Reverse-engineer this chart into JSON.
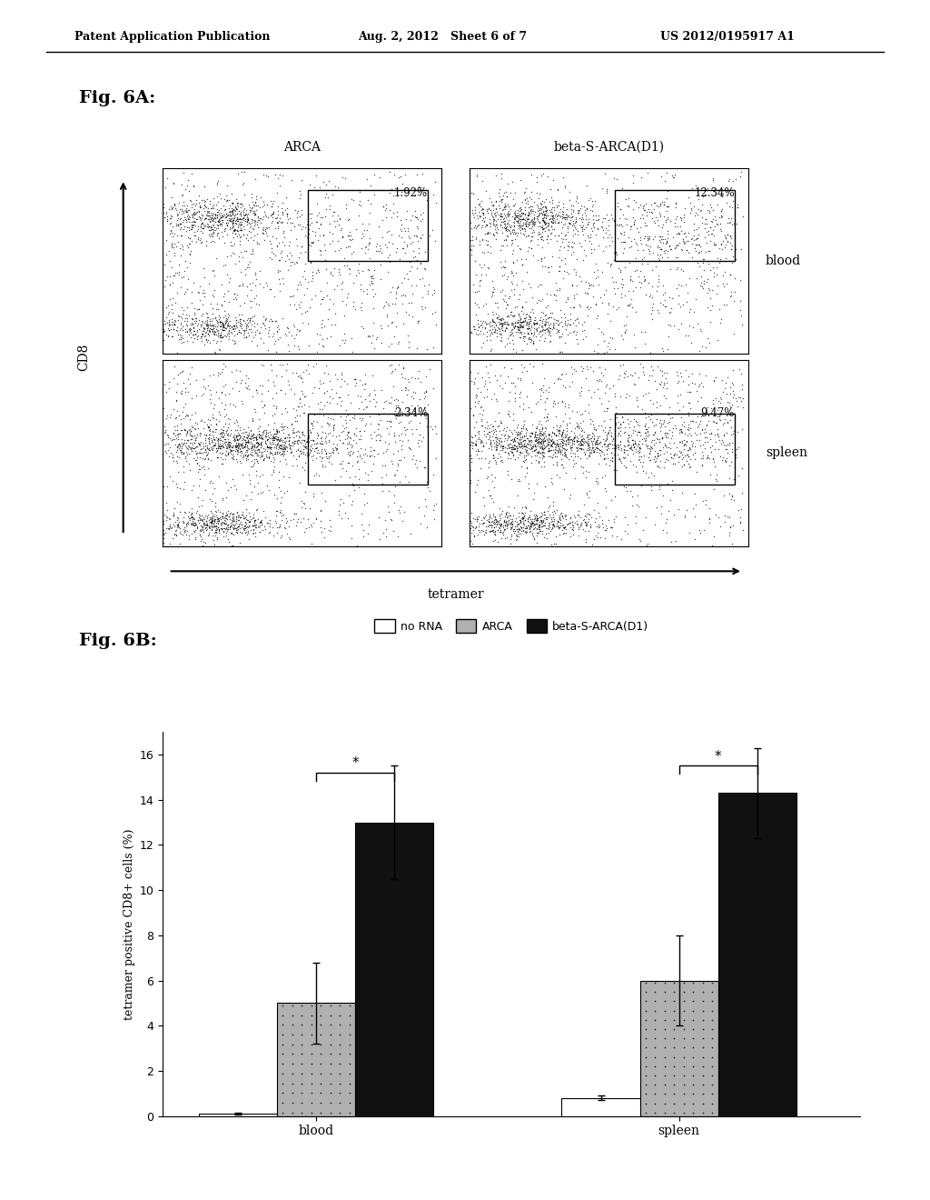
{
  "header_left": "Patent Application Publication",
  "header_mid": "Aug. 2, 2012   Sheet 6 of 7",
  "header_right": "US 2012/0195917 A1",
  "fig6a_label": "Fig. 6A:",
  "fig6b_label": "Fig. 6B:",
  "col_labels": [
    "ARCA",
    "beta-S-ARCA(D1)"
  ],
  "row_labels": [
    "blood",
    "spleen"
  ],
  "gate_values": [
    [
      "1.92%",
      "12.34%"
    ],
    [
      "2.34%",
      "9.47%"
    ]
  ],
  "cd8_label": "CD8",
  "tetramer_label": "tetramer",
  "legend_labels": [
    "no RNA",
    "ARCA",
    "beta-S-ARCA(D1)"
  ],
  "legend_colors": [
    "#ffffff",
    "#aaaaaa",
    "#111111"
  ],
  "bar_groups": [
    "blood",
    "spleen"
  ],
  "bar_values": {
    "no RNA": [
      0.1,
      0.8
    ],
    "ARCA": [
      5.0,
      6.0
    ],
    "beta-S-ARCA(D1)": [
      13.0,
      14.3
    ]
  },
  "bar_errors": {
    "no RNA": [
      0.05,
      0.1
    ],
    "ARCA": [
      1.8,
      2.0
    ],
    "beta-S-ARCA(D1)": [
      2.5,
      2.0
    ]
  },
  "ylabel_6b": "tetramer positive CD8+ cells (%)",
  "ylim_6b": [
    0,
    17
  ],
  "yticks_6b": [
    0,
    2,
    4,
    6,
    8,
    10,
    12,
    14,
    16
  ],
  "background_color": "#ffffff"
}
